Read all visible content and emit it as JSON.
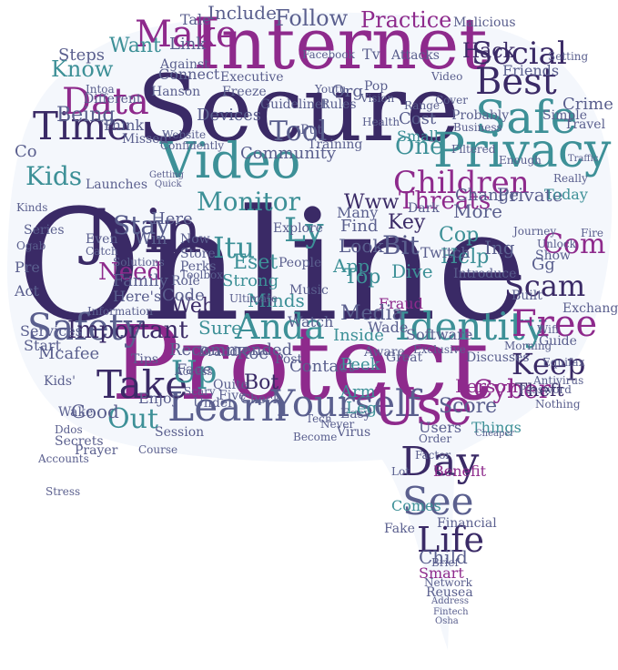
{
  "colors": {
    "background": "#ffffff",
    "bubble_fill": "#f4f7fc",
    "dark_purple": "#3a2a66",
    "magenta": "#8e2a8c",
    "teal": "#3d9097",
    "slate": "#5a5f8e",
    "light_magenta": "#b35ab2",
    "light_teal": "#6fb1b3"
  },
  "words": [
    {
      "text": "Online"
    },
    {
      "text": "Protect"
    },
    {
      "text": "Secure"
    },
    {
      "text": "Internet"
    },
    {
      "text": "Privacy"
    },
    {
      "text": "Video"
    },
    {
      "text": "Join"
    },
    {
      "text": "Safe"
    },
    {
      "text": "Time"
    },
    {
      "text": "Learn"
    },
    {
      "text": "Yourself"
    },
    {
      "text": "Use"
    },
    {
      "text": "Identity"
    },
    {
      "text": "Take"
    },
    {
      "text": "Best"
    },
    {
      "text": "Safety"
    },
    {
      "text": "Free"
    },
    {
      "text": "Day"
    },
    {
      "text": "See"
    },
    {
      "text": "Life"
    },
    {
      "text": "Data"
    },
    {
      "text": "Social"
    },
    {
      "text": "Make"
    },
    {
      "text": "Children"
    },
    {
      "text": "Kids"
    },
    {
      "text": "Anda"
    },
    {
      "text": "Up"
    },
    {
      "text": "Out"
    },
    {
      "text": "Keep"
    },
    {
      "text": "Scam"
    },
    {
      "text": "Cyber"
    },
    {
      "text": "Com"
    },
    {
      "text": "Threats"
    },
    {
      "text": "Monitor"
    },
    {
      "text": "Tool"
    },
    {
      "text": "Stay"
    },
    {
      "text": "Need"
    },
    {
      "text": "Important"
    },
    {
      "text": "Ly"
    },
    {
      "text": "Itu"
    },
    {
      "text": "Web"
    },
    {
      "text": "Hack"
    },
    {
      "text": "One"
    },
    {
      "text": "Practice"
    },
    {
      "text": "Know"
    },
    {
      "text": "Being"
    },
    {
      "text": "Follow"
    },
    {
      "text": "Include"
    },
    {
      "text": "Want"
    },
    {
      "text": "Steps"
    },
    {
      "text": "Child"
    },
    {
      "text": "Person"
    },
    {
      "text": "Theft"
    },
    {
      "text": "Www"
    },
    {
      "text": "Bit"
    },
    {
      "text": "Key"
    },
    {
      "text": "Help"
    },
    {
      "text": "Top"
    },
    {
      "text": "App"
    },
    {
      "text": "Cop"
    },
    {
      "text": "Dive"
    },
    {
      "text": "Fraud"
    },
    {
      "text": "Media"
    },
    {
      "text": "Inside"
    },
    {
      "text": "Score"
    },
    {
      "text": "Users"
    },
    {
      "text": "Things"
    },
    {
      "text": "Benefit"
    },
    {
      "text": "Smart"
    },
    {
      "text": "Financial"
    },
    {
      "text": "Comes"
    },
    {
      "text": "Contact"
    },
    {
      "text": "Peek"
    },
    {
      "text": "Bot"
    },
    {
      "text": "Roe"
    },
    {
      "text": "Eset"
    },
    {
      "text": "Sure"
    },
    {
      "text": "Good"
    },
    {
      "text": "Enjoy"
    },
    {
      "text": "Mcafee"
    },
    {
      "text": "Start"
    },
    {
      "text": "Services"
    },
    {
      "text": "Family"
    },
    {
      "text": "Recommended"
    },
    {
      "text": "Here"
    },
    {
      "text": "Win"
    },
    {
      "text": "Code"
    },
    {
      "text": "Devices"
    },
    {
      "text": "Community"
    },
    {
      "text": "More"
    },
    {
      "text": "Private"
    },
    {
      "text": "Change"
    },
    {
      "text": "Today"
    },
    {
      "text": "Link"
    },
    {
      "text": "Connect"
    },
    {
      "text": "Tv"
    },
    {
      "text": "Org"
    },
    {
      "text": "Cost"
    },
    {
      "text": "Small"
    },
    {
      "text": "Ing"
    },
    {
      "text": "Exchange"
    },
    {
      "text": "Face"
    },
    {
      "text": "Wake"
    },
    {
      "text": "Tips"
    },
    {
      "text": "Series"
    },
    {
      "text": "Co"
    },
    {
      "text": "Pre"
    },
    {
      "text": "Act"
    },
    {
      "text": "Here's"
    },
    {
      "text": "Strong"
    },
    {
      "text": "Minds"
    },
    {
      "text": "Watch"
    },
    {
      "text": "Look"
    },
    {
      "text": "Find"
    },
    {
      "text": "Many"
    },
    {
      "text": "Twitch"
    },
    {
      "text": "Gg"
    },
    {
      "text": "Fire"
    },
    {
      "text": "Crime"
    },
    {
      "text": "Travel"
    },
    {
      "text": "Simple"
    },
    {
      "text": "Friends"
    },
    {
      "text": "Setting"
    },
    {
      "text": "Probably"
    },
    {
      "text": "Video"
    },
    {
      "text": "Think"
    },
    {
      "text": "Missed"
    },
    {
      "text": "Different"
    },
    {
      "text": "Hanson"
    },
    {
      "text": "Freeze"
    },
    {
      "text": "Executive"
    },
    {
      "text": "Against"
    },
    {
      "text": "Facebook"
    },
    {
      "text": "Attacks"
    },
    {
      "text": "Malicious"
    },
    {
      "text": "Tale"
    },
    {
      "text": "Session"
    },
    {
      "text": "Course"
    },
    {
      "text": "Prayer"
    },
    {
      "text": "Accounts"
    },
    {
      "text": "Stress"
    },
    {
      "text": "Secrets"
    },
    {
      "text": "Ddos"
    },
    {
      "text": "Kids'"
    },
    {
      "text": "Under"
    },
    {
      "text": "Five"
    },
    {
      "text": "Quite"
    },
    {
      "text": "Check"
    },
    {
      "text": "Brand"
    },
    {
      "text": "Access"
    },
    {
      "text": "Scary"
    },
    {
      "text": "Become"
    },
    {
      "text": "Never"
    },
    {
      "text": "Tech"
    },
    {
      "text": "Easy"
    },
    {
      "text": "Virus"
    },
    {
      "text": "Arm"
    },
    {
      "text": "Leg"
    },
    {
      "text": "Aware"
    },
    {
      "text": "Great"
    },
    {
      "text": "Software"
    },
    {
      "text": "Discusses"
    },
    {
      "text": "Password"
    },
    {
      "text": "Nothing"
    },
    {
      "text": "Antivirus"
    },
    {
      "text": "Exclusive"
    },
    {
      "text": "Wade"
    },
    {
      "text": "Introduce"
    },
    {
      "text": "Built"
    },
    {
      "text": "Show"
    },
    {
      "text": "Unlock"
    },
    {
      "text": "Journey"
    },
    {
      "text": "Guide"
    },
    {
      "text": "Equifax"
    },
    {
      "text": "Morning"
    },
    {
      "text": "Wifi"
    },
    {
      "text": "Filtered"
    },
    {
      "text": "Enough"
    },
    {
      "text": "Really"
    },
    {
      "text": "Traffic"
    },
    {
      "text": "Business"
    },
    {
      "text": "Range"
    },
    {
      "text": "Cover"
    },
    {
      "text": "Vision"
    },
    {
      "text": "Health"
    },
    {
      "text": "Rules"
    },
    {
      "text": "Pop"
    },
    {
      "text": "Youtu"
    },
    {
      "text": "Guidelinet"
    },
    {
      "text": "Put"
    },
    {
      "text": "Training"
    },
    {
      "text": "Explore"
    },
    {
      "text": "People"
    },
    {
      "text": "Music"
    },
    {
      "text": "Post"
    },
    {
      "text": "Ultimate"
    },
    {
      "text": "Perks"
    },
    {
      "text": "Store"
    },
    {
      "text": "Now"
    },
    {
      "text": "Solutions"
    },
    {
      "text": "Catch"
    },
    {
      "text": "Even"
    },
    {
      "text": "Launches"
    },
    {
      "text": "Role"
    },
    {
      "text": "Information"
    },
    {
      "text": "Kinds"
    },
    {
      "text": "Ogab"
    },
    {
      "text": "Getting"
    },
    {
      "text": "Quick"
    },
    {
      "text": "Website"
    },
    {
      "text": "Confidently"
    },
    {
      "text": "Fake"
    },
    {
      "text": "Dark"
    },
    {
      "text": "Reusea"
    },
    {
      "text": "Network"
    },
    {
      "text": "Address"
    },
    {
      "text": "Fintech"
    },
    {
      "text": "Osha"
    },
    {
      "text": "Lot"
    },
    {
      "text": "Factor"
    },
    {
      "text": "Order"
    },
    {
      "text": "Brief"
    },
    {
      "text": "Cheaper"
    },
    {
      "text": "Intoa"
    },
    {
      "text": "Toolbox"
    }
  ]
}
